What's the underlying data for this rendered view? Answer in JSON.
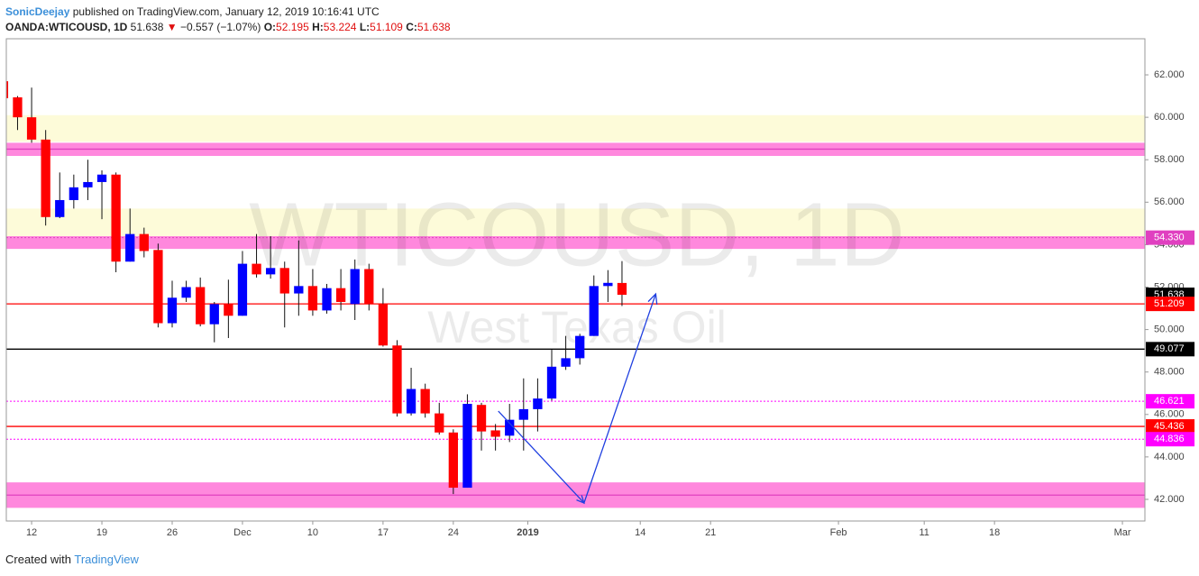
{
  "header": {
    "author": "SonicDeejay",
    "published": "published on TradingView.com, January 12, 2019 10:16:41 UTC",
    "symbol": "OANDA:WTICOUSD, 1D",
    "last": "51.638",
    "arrow": "▼",
    "change": "−0.557 (−1.07%)",
    "o_label": "O:",
    "o": "52.195",
    "h_label": "H:",
    "h": "53.224",
    "l_label": "L:",
    "l": "51.109",
    "c_label": "C:",
    "c": "51.638"
  },
  "footer": {
    "text": "Created with",
    "brand": "TradingView"
  },
  "chart_data": {
    "type": "candlestick",
    "watermark": [
      "WTICOUSD, 1D",
      "West Texas Oil"
    ],
    "up_color": "#0000ff",
    "down_color": "#ff0000",
    "wick_color": "#111111",
    "open": [
      61.7,
      60.94,
      60.0,
      58.95,
      55.3,
      56.1,
      56.7,
      56.95,
      57.3,
      53.2,
      54.5,
      53.75,
      50.3,
      51.5,
      52.0,
      50.25,
      51.2,
      50.65,
      53.1,
      52.6,
      52.9,
      51.7,
      52.05,
      50.9,
      51.95,
      51.2,
      52.85,
      51.2,
      49.25,
      46.05,
      47.2,
      46.05,
      45.15,
      42.55,
      46.45,
      45.25,
      45.0,
      45.75,
      46.25,
      46.75,
      48.25,
      48.65,
      49.7,
      52.05,
      52.195
    ],
    "high": [
      61.7,
      61.0,
      61.4,
      59.4,
      57.4,
      57.3,
      58.0,
      57.5,
      57.4,
      55.7,
      54.8,
      54.05,
      52.3,
      52.3,
      52.45,
      51.3,
      52.35,
      53.7,
      54.5,
      54.4,
      53.2,
      54.2,
      52.85,
      52.15,
      52.85,
      53.3,
      53.1,
      51.95,
      49.5,
      48.2,
      47.45,
      46.55,
      45.3,
      46.95,
      46.55,
      45.55,
      46.5,
      47.7,
      47.7,
      49.05,
      49.7,
      49.8,
      52.55,
      52.8,
      53.224
    ],
    "low": [
      60.85,
      59.4,
      58.8,
      54.9,
      55.25,
      55.7,
      56.1,
      55.2,
      52.7,
      53.2,
      53.4,
      50.1,
      50.1,
      51.3,
      50.15,
      49.4,
      49.6,
      50.65,
      52.45,
      52.4,
      50.1,
      50.65,
      50.65,
      50.75,
      50.9,
      50.45,
      50.9,
      49.2,
      45.9,
      45.95,
      45.85,
      45.05,
      42.25,
      42.55,
      44.3,
      44.3,
      44.7,
      44.3,
      45.2,
      46.65,
      48.1,
      48.35,
      49.7,
      51.3,
      51.109
    ],
    "close": [
      60.9,
      60.0,
      58.95,
      55.3,
      56.1,
      56.7,
      56.95,
      57.3,
      53.2,
      54.5,
      53.7,
      50.3,
      51.5,
      52.0,
      50.25,
      51.2,
      50.65,
      53.1,
      52.6,
      52.9,
      51.7,
      52.05,
      50.9,
      51.95,
      51.3,
      52.85,
      51.2,
      49.25,
      46.05,
      47.2,
      46.05,
      45.15,
      42.55,
      46.5,
      45.2,
      44.95,
      45.75,
      46.25,
      46.75,
      48.25,
      48.65,
      49.7,
      52.05,
      52.2,
      51.638
    ],
    "xlim": [
      0.2,
      81.2
    ],
    "xticks": [
      {
        "value": 2,
        "label": "12"
      },
      {
        "value": 7,
        "label": "19"
      },
      {
        "value": 12,
        "label": "26"
      },
      {
        "value": 17,
        "label": "Dec"
      },
      {
        "value": 22,
        "label": "10"
      },
      {
        "value": 27,
        "label": "17"
      },
      {
        "value": 32,
        "label": "24"
      },
      {
        "value": 37.3,
        "label": "2019"
      },
      {
        "value": 45.3,
        "label": "14"
      },
      {
        "value": 50.3,
        "label": "21"
      },
      {
        "value": 59.4,
        "label": "Feb"
      },
      {
        "value": 65.5,
        "label": "11"
      },
      {
        "value": 70.5,
        "label": "18"
      },
      {
        "value": 79.6,
        "label": "Mar"
      }
    ],
    "ylim": [
      40.98,
      63.7
    ],
    "yticks": [
      {
        "value": 42,
        "label": "42.000"
      },
      {
        "value": 44,
        "label": "44.000"
      },
      {
        "value": 46,
        "label": "46.000"
      },
      {
        "value": 48,
        "label": "48.000"
      },
      {
        "value": 50,
        "label": "50.000"
      },
      {
        "value": 52,
        "label": "52.000"
      },
      {
        "value": 54,
        "label": "54.000"
      },
      {
        "value": 56,
        "label": "56.000"
      },
      {
        "value": 58,
        "label": "58.000"
      },
      {
        "value": 60,
        "label": "60.000"
      },
      {
        "value": 62,
        "label": "62.000"
      }
    ],
    "zones": [
      {
        "from": 58.85,
        "to": 60.1,
        "color": "#fdfbd9"
      },
      {
        "from": 58.18,
        "to": 58.8,
        "color": "#ff88dd"
      },
      {
        "from": 54.4,
        "to": 55.7,
        "color": "#fdfbd9"
      },
      {
        "from": 53.8,
        "to": 54.4,
        "color": "#ff88dd"
      },
      {
        "from": 41.6,
        "to": 42.8,
        "color": "#ff88dd"
      }
    ],
    "levels": [
      {
        "value": 58.5,
        "color": "#e040c0",
        "style": "solid"
      },
      {
        "value": 54.33,
        "label": "54.330",
        "color": "#e040c0",
        "style": "dotted"
      },
      {
        "value": 51.638,
        "label": "51.638",
        "color": "#000000",
        "style": "none"
      },
      {
        "value": 51.209,
        "label": "51.209",
        "color": "#ff0000",
        "style": "solid"
      },
      {
        "value": 49.077,
        "label": "49.077",
        "color": "#000000",
        "style": "solid"
      },
      {
        "value": 46.621,
        "label": "46.621",
        "color": "#ff00ff",
        "style": "dotted"
      },
      {
        "value": 45.436,
        "label": "45.436",
        "color": "#ff0000",
        "style": "solid"
      },
      {
        "value": 44.836,
        "label": "44.836",
        "color": "#ff00ff",
        "style": "dotted"
      },
      {
        "value": 42.2,
        "color": "#e040c0",
        "style": "solid"
      }
    ],
    "arrow": {
      "x": [
        35.2,
        41.3,
        46.4
      ],
      "y": [
        46.16,
        41.83,
        51.68
      ],
      "color": "#2040e0"
    }
  }
}
